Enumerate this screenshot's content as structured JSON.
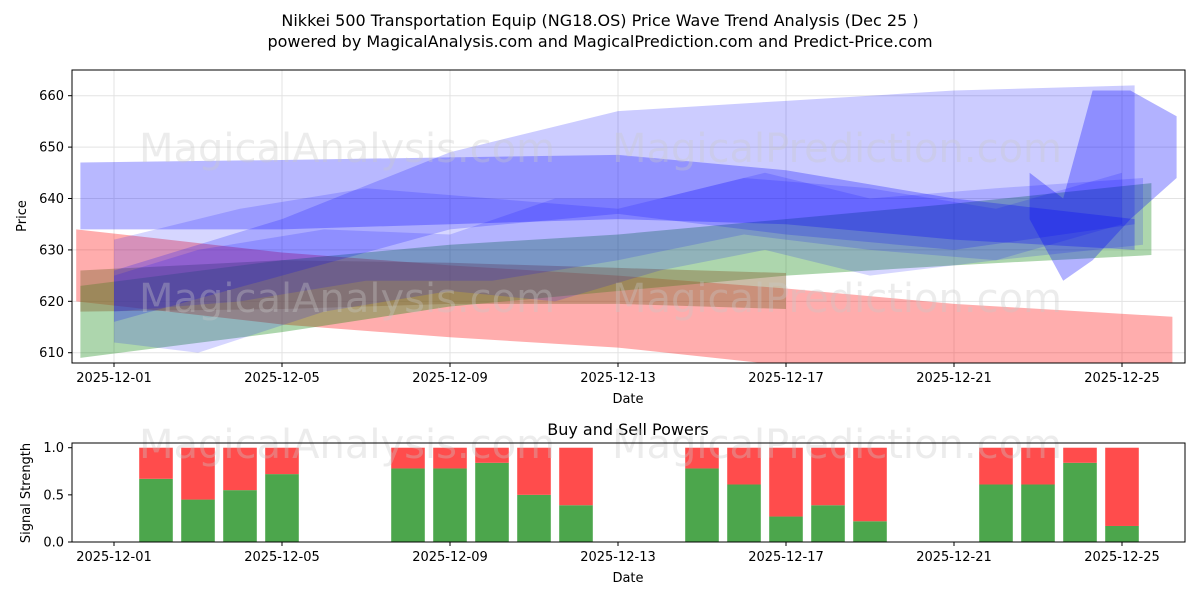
{
  "page": {
    "title_line1": "Nikkei 500 Transportation Equip (NG18.OS) Price Wave Trend Analysis (Dec 25 )",
    "title_line2": "powered by MagicalAnalysis.com and MagicalPrediction.com and Predict-Price.com",
    "watermarks": [
      "MagicalAnalysis.com",
      "MagicalPrediction.com"
    ]
  },
  "chart_data": [
    {
      "type": "area",
      "title": "",
      "xlabel": "Date",
      "ylabel": "Price",
      "xlim": [
        -1.0,
        25.5
      ],
      "ylim": [
        608,
        665
      ],
      "grid": true,
      "x_tick_labels": [
        "2025-12-01",
        "2025-12-05",
        "2025-12-09",
        "2025-12-13",
        "2025-12-17",
        "2025-12-21",
        "2025-12-25"
      ],
      "x_tick_positions": [
        0,
        4,
        8,
        12,
        16,
        20,
        24
      ],
      "y_ticks": [
        610,
        620,
        630,
        640,
        650,
        660
      ],
      "colors": {
        "blue": "#0000ff",
        "green": "#008000",
        "red": "#ff0000"
      },
      "bands": [
        {
          "name": "red-wave",
          "color": "red",
          "opacity": 0.32,
          "x": [
            -0.9,
            4,
            8,
            12,
            16,
            20,
            25.2
          ],
          "lower": [
            620,
            615.5,
            613,
            611,
            607.5,
            605,
            601
          ],
          "upper": [
            634,
            629.5,
            627,
            625,
            622.5,
            619.5,
            617
          ]
        },
        {
          "name": "green-wave",
          "color": "green",
          "opacity": 0.32,
          "x": [
            -0.8,
            4,
            8,
            12,
            16,
            20,
            24.7
          ],
          "lower": [
            609,
            614,
            619,
            622,
            625,
            627,
            629
          ],
          "upper": [
            623,
            628,
            631,
            633,
            636,
            639,
            643
          ]
        },
        {
          "name": "olive-wave",
          "color": "olive",
          "opacity": 0.45,
          "x": [
            -0.8,
            4,
            8,
            12,
            16
          ],
          "lower": [
            618,
            618.5,
            619.5,
            619.5,
            618.5
          ],
          "upper": [
            626,
            628,
            627.5,
            626.5,
            625.5
          ]
        },
        {
          "name": "blue-wave-1",
          "color": "blue",
          "opacity": 0.28,
          "x": [
            -0.8,
            4,
            8,
            12,
            16,
            20,
            24.3
          ],
          "lower": [
            634,
            634,
            635,
            636,
            635,
            632,
            630
          ],
          "upper": [
            647,
            647.5,
            648,
            648.5,
            645.5,
            640,
            636
          ]
        },
        {
          "name": "blue-wave-2",
          "color": "blue",
          "opacity": 0.2,
          "x": [
            0,
            4,
            8,
            12,
            16,
            20,
            24.3
          ],
          "lower": [
            616,
            625,
            634,
            637,
            633,
            630,
            635
          ],
          "upper": [
            626,
            636,
            649,
            657,
            659,
            661,
            662
          ]
        },
        {
          "name": "blue-wave-3",
          "color": "blue",
          "opacity": 0.16,
          "x": [
            0,
            3,
            6,
            9,
            12,
            15,
            18,
            21,
            24
          ],
          "lower": [
            618,
            620,
            624,
            624,
            628,
            633,
            630,
            628,
            635
          ],
          "upper": [
            632,
            638,
            642,
            640,
            638,
            644,
            642,
            638,
            645
          ]
        },
        {
          "name": "blue-wave-4",
          "color": "blue",
          "opacity": 0.16,
          "x": [
            0,
            2,
            5,
            8,
            10.5,
            13,
            15.5,
            18,
            21,
            24.5
          ],
          "lower": [
            612,
            610,
            618,
            622,
            620,
            626,
            630,
            625,
            628,
            631
          ],
          "upper": [
            625,
            630,
            634,
            633,
            640,
            640,
            645,
            640,
            642,
            644
          ]
        },
        {
          "name": "blue-wave-spike",
          "color": "blue",
          "opacity": 0.3,
          "x": [
            21.8,
            22.6,
            23.3,
            24.2,
            25.3
          ],
          "lower": [
            636,
            624,
            628,
            636,
            644
          ],
          "upper": [
            645,
            640,
            661,
            661,
            656
          ]
        }
      ]
    },
    {
      "type": "bar",
      "title": "Buy and Sell Powers",
      "xlabel": "Date",
      "ylabel": "Signal Strength",
      "xlim": [
        -1.0,
        25.5
      ],
      "ylim": [
        0,
        1.05
      ],
      "y_ticks": [
        0.0,
        0.5,
        1.0
      ],
      "y_tick_labels": [
        "0.0",
        "0.5",
        "1.0"
      ],
      "x_tick_labels": [
        "2025-12-01",
        "2025-12-05",
        "2025-12-09",
        "2025-12-13",
        "2025-12-17",
        "2025-12-21",
        "2025-12-25"
      ],
      "x_tick_positions": [
        0,
        4,
        8,
        12,
        16,
        20,
        24
      ],
      "colors": {
        "buy": "#4ca64c",
        "sell": "#ff4c4c"
      },
      "x": [
        1,
        2,
        3,
        4,
        7,
        8,
        9,
        10,
        11,
        14,
        15,
        16,
        17,
        18,
        21,
        22,
        23,
        24
      ],
      "buy": [
        0.67,
        0.45,
        0.55,
        0.72,
        0.78,
        0.78,
        0.84,
        0.5,
        0.39,
        0.78,
        0.61,
        0.27,
        0.39,
        0.22,
        0.61,
        0.61,
        0.84,
        0.17
      ],
      "sell": [
        0.33,
        0.55,
        0.45,
        0.28,
        0.22,
        0.22,
        0.16,
        0.5,
        0.61,
        0.22,
        0.39,
        0.73,
        0.61,
        0.78,
        0.39,
        0.39,
        0.16,
        0.83
      ]
    }
  ]
}
